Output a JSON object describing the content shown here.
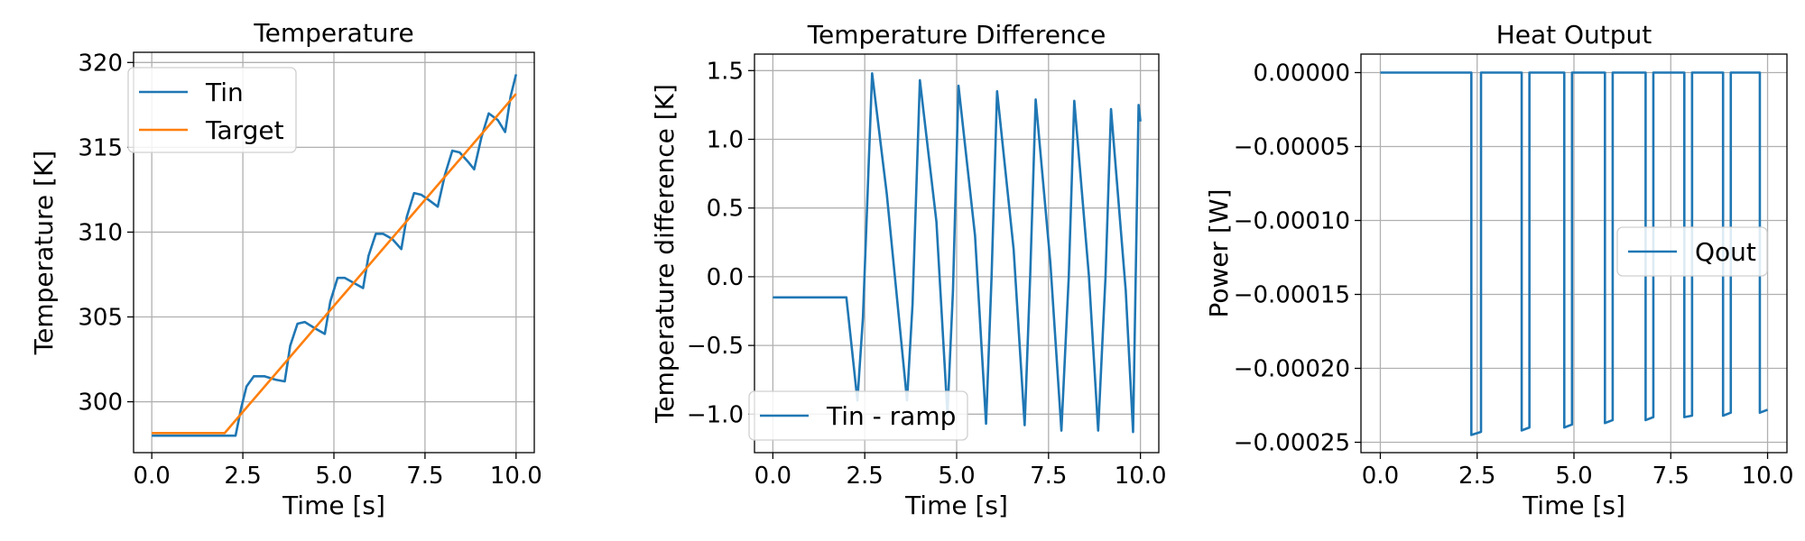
{
  "colors": {
    "blue": "#1f77b4",
    "orange": "#ff7f0e"
  },
  "chart_data": [
    {
      "type": "line",
      "title": "Temperature",
      "xlabel": "Time [s]",
      "ylabel": "Temperature [K]",
      "xlim": [
        -0.5,
        10.5
      ],
      "ylim": [
        297,
        320.6
      ],
      "xticks": [
        0,
        2.5,
        5,
        7.5,
        10
      ],
      "xtick_labels": [
        "0.0",
        "2.5",
        "5.0",
        "7.5",
        "10.0"
      ],
      "yticks": [
        300,
        305,
        310,
        315,
        320
      ],
      "ytick_labels": [
        "300",
        "305",
        "310",
        "315",
        "320"
      ],
      "grid": true,
      "legend": "upper-left",
      "series": [
        {
          "name": "Tin",
          "color": "#1f77b4",
          "x": [
            0,
            2.3,
            2.45,
            2.6,
            2.8,
            3.1,
            3.4,
            3.65,
            3.8,
            4.0,
            4.2,
            4.5,
            4.75,
            4.9,
            5.1,
            5.3,
            5.55,
            5.8,
            5.95,
            6.15,
            6.35,
            6.6,
            6.85,
            7.0,
            7.2,
            7.4,
            7.6,
            7.85,
            8.05,
            8.25,
            8.45,
            8.7,
            8.85,
            9.05,
            9.25,
            9.5,
            9.7,
            9.85,
            10.0
          ],
          "y": [
            298.0,
            298.0,
            299.6,
            300.9,
            301.5,
            301.5,
            301.3,
            301.2,
            303.3,
            304.6,
            304.7,
            304.3,
            304.0,
            305.9,
            307.3,
            307.3,
            307.0,
            306.7,
            308.6,
            309.9,
            309.9,
            309.6,
            309.0,
            310.9,
            312.3,
            312.2,
            311.9,
            311.5,
            313.4,
            314.8,
            314.7,
            314.1,
            313.7,
            315.6,
            317.0,
            316.6,
            315.9,
            318.0,
            319.3
          ]
        },
        {
          "name": "Target",
          "color": "#ff7f0e",
          "x": [
            0,
            2.0,
            10.0
          ],
          "y": [
            298.15,
            298.15,
            318.15
          ]
        }
      ]
    },
    {
      "type": "line",
      "title": "Temperature Difference",
      "xlabel": "Time [s]",
      "ylabel": "Temperature difference [K]",
      "xlim": [
        -0.5,
        10.5
      ],
      "ylim": [
        -1.28,
        1.62
      ],
      "xticks": [
        0,
        2.5,
        5,
        7.5,
        10
      ],
      "xtick_labels": [
        "0.0",
        "2.5",
        "5.0",
        "7.5",
        "10.0"
      ],
      "yticks": [
        -1.0,
        -0.5,
        0.0,
        0.5,
        1.0,
        1.5
      ],
      "ytick_labels": [
        "−1.0",
        "−0.5",
        "0.0",
        "0.5",
        "1.0",
        "1.5"
      ],
      "grid": true,
      "legend": "lower-left",
      "series": [
        {
          "name": "Tin - ramp",
          "color": "#1f77b4",
          "x": [
            0,
            2.0,
            2.3,
            2.45,
            2.7,
            3.1,
            3.65,
            3.8,
            4.0,
            4.45,
            4.75,
            4.9,
            5.05,
            5.5,
            5.8,
            5.95,
            6.1,
            6.55,
            6.85,
            7.0,
            7.15,
            7.55,
            7.85,
            8.05,
            8.2,
            8.6,
            8.85,
            9.05,
            9.2,
            9.6,
            9.8,
            9.95,
            10.0
          ],
          "y": [
            -0.15,
            -0.15,
            -0.9,
            -0.3,
            1.48,
            0.6,
            -0.9,
            -0.2,
            1.43,
            0.4,
            -1.0,
            -0.1,
            1.39,
            0.3,
            -1.07,
            0.0,
            1.35,
            0.2,
            -1.08,
            0.0,
            1.29,
            0.1,
            -1.12,
            0.0,
            1.28,
            0.0,
            -1.12,
            0.0,
            1.22,
            -0.1,
            -1.13,
            1.25,
            1.13
          ]
        }
      ]
    },
    {
      "type": "line",
      "title": "Heat Output",
      "xlabel": "Time [s]",
      "ylabel": "Power [W]",
      "xlim": [
        -0.5,
        10.5
      ],
      "ylim": [
        -0.000257,
        1.25e-05
      ],
      "xticks": [
        0,
        2.5,
        5,
        7.5,
        10
      ],
      "xtick_labels": [
        "0.0",
        "2.5",
        "5.0",
        "7.5",
        "10.0"
      ],
      "yticks": [
        0,
        -5e-05,
        -0.0001,
        -0.00015,
        -0.0002,
        -0.00025
      ],
      "ytick_labels": [
        "0.00000",
        "−0.00005",
        "−0.00010",
        "−0.00015",
        "−0.00020",
        "−0.00025"
      ],
      "grid": true,
      "legend": "center-right",
      "series": [
        {
          "name": "Qout",
          "color": "#1f77b4",
          "x": [
            0,
            2.35,
            2.35,
            2.6,
            2.6,
            3.65,
            3.65,
            3.85,
            3.85,
            4.75,
            4.75,
            4.95,
            4.95,
            5.8,
            5.8,
            6.0,
            6.0,
            6.85,
            6.85,
            7.05,
            7.05,
            7.85,
            7.85,
            8.05,
            8.05,
            8.85,
            8.85,
            9.05,
            9.05,
            9.8,
            9.8,
            10.0
          ],
          "y": [
            0,
            0,
            -0.000245,
            -0.000243,
            0,
            0,
            -0.000242,
            -0.00024,
            0,
            0,
            -0.00024,
            -0.000238,
            0,
            0,
            -0.000237,
            -0.000235,
            0,
            0,
            -0.000235,
            -0.000233,
            0,
            0,
            -0.000233,
            -0.000232,
            0,
            0,
            -0.000232,
            -0.00023,
            0,
            0,
            -0.00023,
            -0.000228
          ]
        }
      ]
    }
  ]
}
